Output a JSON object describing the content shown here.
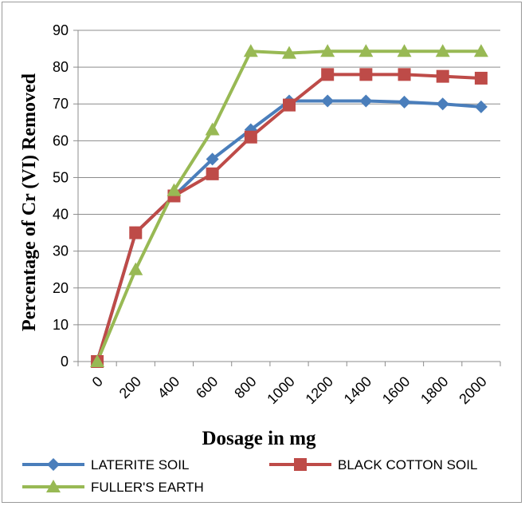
{
  "chart_data": {
    "type": "line",
    "title": "",
    "xlabel": "Dosage in mg",
    "ylabel": "Percentage of Cr (VI) Removed",
    "categories": [
      "0",
      "200",
      "400",
      "600",
      "800",
      "1000",
      "1200",
      "1400",
      "1600",
      "1800",
      "2000"
    ],
    "ylim": [
      0,
      90
    ],
    "yticks": [
      0,
      10,
      20,
      30,
      40,
      50,
      60,
      70,
      80,
      90
    ],
    "grid": "horizontal",
    "legend_position": "bottom",
    "series": [
      {
        "name": "LATERITE SOIL",
        "color": "#4a7ebb",
        "marker": "diamond",
        "values": [
          0,
          35,
          45,
          55,
          63,
          70.8,
          70.8,
          70.8,
          70.5,
          70,
          69.2
        ]
      },
      {
        "name": "BLACK COTTON SOIL",
        "color": "#be4b48",
        "marker": "square",
        "values": [
          0,
          35,
          45,
          51,
          61,
          69.7,
          78,
          78,
          78,
          77.5,
          77
        ]
      },
      {
        "name": "FULLER'S EARTH",
        "color": "#98b954",
        "marker": "triangle",
        "values": [
          0,
          25,
          46.5,
          63,
          84.3,
          83.8,
          84.3,
          84.3,
          84.3,
          84.3,
          84.3
        ]
      }
    ]
  }
}
